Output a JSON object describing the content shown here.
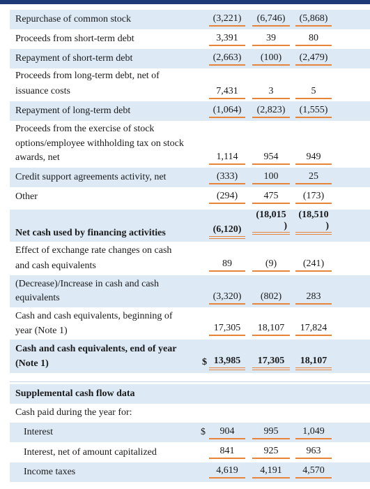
{
  "rows": {
    "r1": {
      "label": "Repurchase of common stock",
      "v1": "(3,221)",
      "v2": "(6,746)",
      "v3": "(5,868)"
    },
    "r2": {
      "label": "Proceeds from short-term debt",
      "v1": "3,391",
      "v2": "39",
      "v3": "80"
    },
    "r3": {
      "label": "Repayment of short-term debt",
      "v1": "(2,663)",
      "v2": "(100)",
      "v3": "(2,479)"
    },
    "r4": {
      "label_line1": "Proceeds from long-term debt, net of",
      "label_line2": "issuance costs",
      "v1": "7,431",
      "v2": "3",
      "v3": "5"
    },
    "r5": {
      "label": "Repayment of long-term debt",
      "v1": "(1,064)",
      "v2": "(2,823)",
      "v3": "(1,555)"
    },
    "r6": {
      "label_line1": "Proceeds from the exercise of stock",
      "label_line2": "options/employee withholding tax on stock",
      "label_line3": "awards, net",
      "v1": "1,114",
      "v2": "954",
      "v3": "949"
    },
    "r7": {
      "label": "Credit support agreements activity, net",
      "v1": "(333)",
      "v2": "100",
      "v3": "25"
    },
    "r8": {
      "label": "Other",
      "v1": "(294)",
      "v2": "475",
      "v3": "(173)"
    },
    "r9": {
      "label": "Net cash used by financing activities",
      "v1": "(6,120)",
      "v2_line1": "(18,015",
      "v2_line2": ")",
      "v3_line1": "(18,510",
      "v3_line2": ")"
    },
    "r10": {
      "label_line1": "Effect of exchange rate changes on cash",
      "label_line2": "and cash equivalents",
      "v1": "89",
      "v2": "(9)",
      "v3": "(241)"
    },
    "r11": {
      "label_line1": "(Decrease)/Increase in cash and cash",
      "label_line2": "equivalents",
      "v1": "(3,320)",
      "v2": "(802)",
      "v3": "283"
    },
    "r12": {
      "label_line1": "Cash and cash equivalents, beginning of",
      "label_line2": "year (Note 1)",
      "v1": "17,305",
      "v2": "18,107",
      "v3": "17,824"
    },
    "r13": {
      "label_line1": "Cash and cash equivalents, end of year",
      "label_line2": "(Note 1)",
      "currency": "$",
      "v1": "13,985",
      "v2": "17,305",
      "v3": "18,107"
    }
  },
  "supplemental": {
    "title": "Supplemental cash flow data",
    "subtitle": "Cash paid during the year for:",
    "interest": {
      "label": "Interest",
      "currency": "$",
      "v1": "904",
      "v2": "995",
      "v3": "1,049"
    },
    "interest_net": {
      "label": "Interest, net of amount capitalized",
      "v1": "841",
      "v2": "925",
      "v3": "963"
    },
    "income_taxes": {
      "label": "Income taxes",
      "v1": "4,619",
      "v2": "4,191",
      "v3": "4,570"
    }
  },
  "colors": {
    "band": "#dde9f5",
    "underline": "#e8833a",
    "topbar": "#1f3a78"
  }
}
